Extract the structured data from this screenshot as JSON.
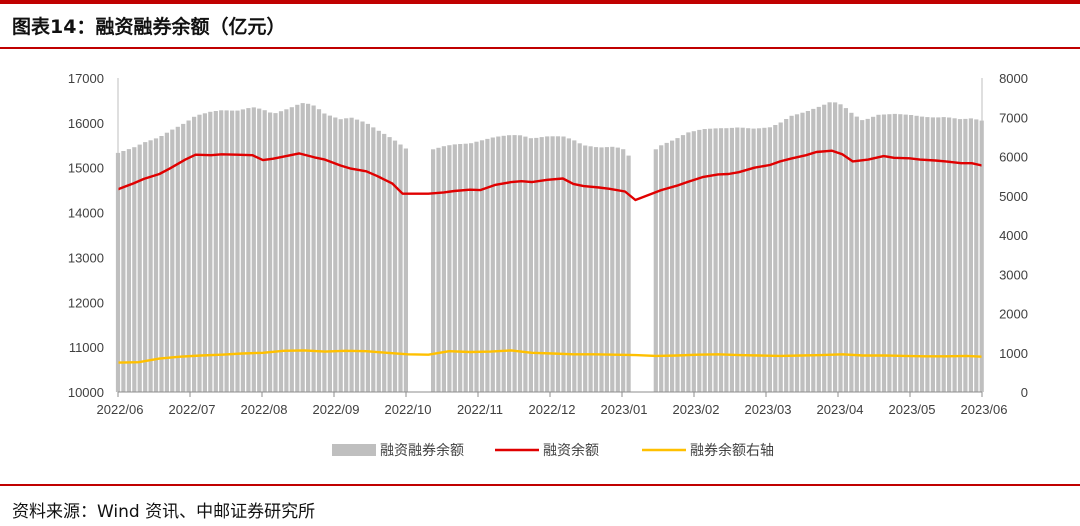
{
  "page": {
    "title": "图表14：融资融券余额（亿元）",
    "source": "资料来源：Wind 资讯、中邮证券研究所",
    "accent_color": "#c00000"
  },
  "chart_data": {
    "type": "bar",
    "title": "",
    "x_labels": [
      "2022/06",
      "2022/07",
      "2022/08",
      "2022/09",
      "2022/10",
      "2022/11",
      "2022/12",
      "2023/01",
      "2023/02",
      "2023/03",
      "2023/04",
      "2023/05",
      "2023/06"
    ],
    "y_left": {
      "min": 10000,
      "max": 17000,
      "ticks": [
        "10000",
        "11000",
        "12000",
        "13000",
        "14000",
        "15000",
        "16000",
        "17000"
      ]
    },
    "y_right": {
      "min": 0,
      "max": 8000,
      "ticks": [
        "0",
        "1000",
        "2000",
        "3000",
        "4000",
        "5000",
        "6000",
        "7000",
        "8000"
      ]
    },
    "series": [
      {
        "name": "融资融券余额",
        "kind": "bar",
        "color": "#bfbfbf",
        "points": [
          [
            0.0,
            15330
          ],
          [
            0.3,
            15450
          ],
          [
            0.5,
            15560
          ],
          [
            0.8,
            15680
          ],
          [
            1.0,
            15820
          ],
          [
            1.3,
            16000
          ],
          [
            1.5,
            16160
          ],
          [
            1.8,
            16250
          ],
          [
            2.0,
            16280
          ],
          [
            2.3,
            16270
          ],
          [
            2.6,
            16350
          ],
          [
            2.8,
            16300
          ],
          [
            3.0,
            16200
          ],
          [
            3.3,
            16320
          ],
          [
            3.5,
            16420
          ],
          [
            3.6,
            16450
          ],
          [
            3.8,
            16380
          ],
          [
            4.0,
            16200
          ],
          [
            4.3,
            16080
          ],
          [
            4.5,
            16120
          ],
          [
            4.8,
            16000
          ],
          [
            5.0,
            15850
          ],
          [
            5.3,
            15650
          ],
          [
            5.6,
            15400
          ],
          [
            6.0,
            15380
          ],
          [
            6.3,
            15480
          ],
          [
            6.5,
            15520
          ],
          [
            6.8,
            15540
          ],
          [
            7.0,
            15600
          ],
          [
            7.3,
            15690
          ],
          [
            7.6,
            15730
          ],
          [
            7.8,
            15720
          ],
          [
            8.0,
            15650
          ],
          [
            8.3,
            15700
          ],
          [
            8.6,
            15700
          ],
          [
            8.8,
            15620
          ],
          [
            9.0,
            15500
          ],
          [
            9.3,
            15450
          ],
          [
            9.6,
            15470
          ],
          [
            9.8,
            15400
          ],
          [
            9.95,
            15120
          ],
          [
            10.3,
            15330
          ],
          [
            10.5,
            15500
          ],
          [
            10.8,
            15650
          ],
          [
            11.0,
            15780
          ],
          [
            11.3,
            15860
          ],
          [
            11.6,
            15880
          ],
          [
            11.8,
            15880
          ],
          [
            12.0,
            15900
          ],
          [
            12.3,
            15870
          ],
          [
            12.6,
            15900
          ],
          [
            12.8,
            16000
          ],
          [
            13.0,
            16150
          ],
          [
            13.3,
            16250
          ],
          [
            13.6,
            16380
          ],
          [
            13.8,
            16480
          ],
          [
            14.0,
            16400
          ],
          [
            14.2,
            16200
          ],
          [
            14.4,
            16050
          ],
          [
            14.7,
            16180
          ],
          [
            15.0,
            16200
          ],
          [
            15.3,
            16180
          ],
          [
            15.6,
            16130
          ],
          [
            15.8,
            16120
          ],
          [
            16.0,
            16130
          ],
          [
            16.3,
            16080
          ],
          [
            16.5,
            16100
          ],
          [
            16.7,
            16050
          ]
        ]
      },
      {
        "name": "融资余额",
        "kind": "line",
        "color": "#e00000",
        "points": [
          [
            0.0,
            14520
          ],
          [
            0.3,
            14650
          ],
          [
            0.5,
            14750
          ],
          [
            0.8,
            14860
          ],
          [
            1.0,
            14980
          ],
          [
            1.3,
            15180
          ],
          [
            1.5,
            15290
          ],
          [
            1.8,
            15280
          ],
          [
            2.0,
            15300
          ],
          [
            2.3,
            15290
          ],
          [
            2.6,
            15280
          ],
          [
            2.8,
            15170
          ],
          [
            3.0,
            15200
          ],
          [
            3.3,
            15270
          ],
          [
            3.5,
            15320
          ],
          [
            3.8,
            15230
          ],
          [
            4.0,
            15180
          ],
          [
            4.3,
            15050
          ],
          [
            4.5,
            14980
          ],
          [
            4.8,
            14920
          ],
          [
            5.0,
            14820
          ],
          [
            5.3,
            14650
          ],
          [
            5.5,
            14420
          ],
          [
            6.0,
            14420
          ],
          [
            6.3,
            14450
          ],
          [
            6.5,
            14480
          ],
          [
            6.8,
            14510
          ],
          [
            7.0,
            14500
          ],
          [
            7.3,
            14620
          ],
          [
            7.6,
            14680
          ],
          [
            7.8,
            14700
          ],
          [
            8.0,
            14680
          ],
          [
            8.3,
            14730
          ],
          [
            8.6,
            14760
          ],
          [
            8.8,
            14640
          ],
          [
            9.0,
            14590
          ],
          [
            9.3,
            14560
          ],
          [
            9.5,
            14530
          ],
          [
            9.8,
            14470
          ],
          [
            10.0,
            14280
          ],
          [
            10.5,
            14500
          ],
          [
            10.8,
            14600
          ],
          [
            11.0,
            14680
          ],
          [
            11.3,
            14790
          ],
          [
            11.6,
            14850
          ],
          [
            11.8,
            14860
          ],
          [
            12.0,
            14900
          ],
          [
            12.3,
            15000
          ],
          [
            12.6,
            15060
          ],
          [
            12.8,
            15140
          ],
          [
            13.0,
            15200
          ],
          [
            13.3,
            15280
          ],
          [
            13.5,
            15350
          ],
          [
            13.8,
            15380
          ],
          [
            14.0,
            15300
          ],
          [
            14.2,
            15140
          ],
          [
            14.5,
            15180
          ],
          [
            14.8,
            15260
          ],
          [
            15.0,
            15220
          ],
          [
            15.3,
            15210
          ],
          [
            15.5,
            15180
          ],
          [
            15.8,
            15160
          ],
          [
            16.0,
            15140
          ],
          [
            16.3,
            15100
          ],
          [
            16.5,
            15100
          ],
          [
            16.7,
            15050
          ]
        ]
      },
      {
        "name": "融券余额右轴",
        "kind": "line",
        "color": "#ffc000",
        "axis": "right",
        "points": [
          [
            0.0,
            750
          ],
          [
            0.4,
            760
          ],
          [
            0.8,
            850
          ],
          [
            1.2,
            900
          ],
          [
            1.6,
            930
          ],
          [
            2.0,
            950
          ],
          [
            2.4,
            980
          ],
          [
            2.8,
            1000
          ],
          [
            3.2,
            1050
          ],
          [
            3.6,
            1060
          ],
          [
            4.0,
            1030
          ],
          [
            4.4,
            1050
          ],
          [
            4.8,
            1040
          ],
          [
            5.2,
            1000
          ],
          [
            5.6,
            960
          ],
          [
            6.0,
            950
          ],
          [
            6.4,
            1040
          ],
          [
            6.8,
            1020
          ],
          [
            7.2,
            1030
          ],
          [
            7.6,
            1060
          ],
          [
            8.0,
            1000
          ],
          [
            8.4,
            980
          ],
          [
            8.8,
            960
          ],
          [
            9.2,
            960
          ],
          [
            9.6,
            950
          ],
          [
            10.0,
            940
          ],
          [
            10.4,
            920
          ],
          [
            10.8,
            930
          ],
          [
            11.2,
            950
          ],
          [
            11.6,
            960
          ],
          [
            12.0,
            940
          ],
          [
            12.4,
            930
          ],
          [
            12.8,
            920
          ],
          [
            13.2,
            930
          ],
          [
            13.6,
            940
          ],
          [
            14.0,
            960
          ],
          [
            14.4,
            930
          ],
          [
            14.8,
            930
          ],
          [
            15.2,
            920
          ],
          [
            15.6,
            910
          ],
          [
            16.0,
            910
          ],
          [
            16.4,
            920
          ],
          [
            16.7,
            900
          ]
        ]
      }
    ],
    "legend_position": "bottom",
    "grid": false
  }
}
